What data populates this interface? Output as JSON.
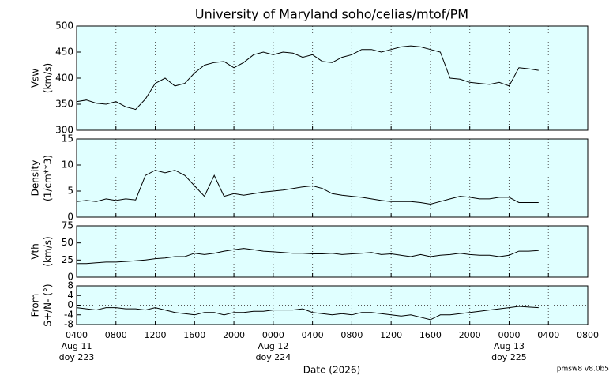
{
  "title": "University of Maryland  soho/celias/mtof/PM",
  "xlabel": "Date (2026)",
  "footer": "pmsw8 v8.0b5",
  "xlim": [
    4,
    56
  ],
  "xticks": [
    {
      "value": 4,
      "label": "0400"
    },
    {
      "value": 8,
      "label": "0800"
    },
    {
      "value": 12,
      "label": "1200"
    },
    {
      "value": 16,
      "label": "1600"
    },
    {
      "value": 20,
      "label": "2000"
    },
    {
      "value": 24,
      "label": "0000"
    },
    {
      "value": 28,
      "label": "0400"
    },
    {
      "value": 32,
      "label": "0800"
    },
    {
      "value": 36,
      "label": "1200"
    },
    {
      "value": 40,
      "label": "1600"
    },
    {
      "value": 44,
      "label": "2000"
    },
    {
      "value": 48,
      "label": "0000"
    },
    {
      "value": 52,
      "label": "0400"
    },
    {
      "value": 56,
      "label": "0800"
    }
  ],
  "date_labels": [
    {
      "value": 4,
      "lines": [
        "Aug 11",
        "doy 223"
      ]
    },
    {
      "value": 24,
      "lines": [
        "Aug 12",
        "doy 224"
      ]
    },
    {
      "value": 48,
      "lines": [
        "Aug 13",
        "doy 225"
      ]
    }
  ],
  "chart_data": [
    {
      "type": "line",
      "ylabel": [
        "Vsw",
        "(km/s)"
      ],
      "color": "#000000",
      "ylim": [
        300,
        500
      ],
      "yticks": [
        300,
        350,
        400,
        450,
        500
      ],
      "x": [
        4,
        5,
        6,
        7,
        8,
        9,
        10,
        11,
        12,
        13,
        14,
        15,
        16,
        17,
        18,
        19,
        20,
        21,
        22,
        23,
        24,
        25,
        26,
        27,
        28,
        29,
        30,
        31,
        32,
        33,
        34,
        35,
        36,
        37,
        38,
        39,
        40,
        41,
        42,
        43,
        44,
        45,
        46,
        47,
        48,
        49,
        50,
        51
      ],
      "values": [
        355,
        358,
        352,
        350,
        355,
        345,
        340,
        360,
        390,
        400,
        385,
        390,
        410,
        425,
        430,
        432,
        420,
        430,
        445,
        450,
        445,
        450,
        448,
        440,
        445,
        432,
        430,
        440,
        445,
        455,
        455,
        450,
        455,
        460,
        462,
        460,
        455,
        450,
        400,
        398,
        392,
        390,
        388,
        392,
        385,
        420,
        418,
        415
      ]
    },
    {
      "type": "line",
      "ylabel": [
        "Density",
        "(1/cm**3)"
      ],
      "color": "#000000",
      "ylim": [
        0,
        15
      ],
      "yticks": [
        0,
        5,
        10,
        15
      ],
      "x": [
        4,
        5,
        6,
        7,
        8,
        9,
        10,
        11,
        12,
        13,
        14,
        15,
        16,
        17,
        18,
        19,
        20,
        21,
        22,
        23,
        24,
        25,
        26,
        27,
        28,
        29,
        30,
        31,
        32,
        33,
        34,
        35,
        36,
        37,
        38,
        39,
        40,
        41,
        42,
        43,
        44,
        45,
        46,
        47,
        48,
        49,
        50,
        51
      ],
      "values": [
        3,
        3.2,
        3,
        3.5,
        3.2,
        3.5,
        3.3,
        8,
        9,
        8.5,
        9,
        8,
        6,
        4,
        8,
        4,
        4.5,
        4.2,
        4.5,
        4.8,
        5,
        5.2,
        5.5,
        5.8,
        6,
        5.5,
        4.5,
        4.2,
        4,
        3.8,
        3.5,
        3.2,
        3,
        3,
        3,
        2.8,
        2.5,
        3,
        3.5,
        4,
        3.8,
        3.5,
        3.5,
        3.8,
        3.8,
        2.8,
        2.8,
        2.8
      ]
    },
    {
      "type": "line",
      "ylabel": [
        "Vth",
        "(km/s)"
      ],
      "color": "#000000",
      "ylim": [
        0,
        75
      ],
      "yticks": [
        0,
        25,
        50,
        75
      ],
      "x": [
        4,
        5,
        6,
        7,
        8,
        9,
        10,
        11,
        12,
        13,
        14,
        15,
        16,
        17,
        18,
        19,
        20,
        21,
        22,
        23,
        24,
        25,
        26,
        27,
        28,
        29,
        30,
        31,
        32,
        33,
        34,
        35,
        36,
        37,
        38,
        39,
        40,
        41,
        42,
        43,
        44,
        45,
        46,
        47,
        48,
        49,
        50,
        51
      ],
      "values": [
        20,
        20,
        21,
        22,
        22,
        23,
        24,
        25,
        27,
        28,
        30,
        30,
        35,
        33,
        35,
        38,
        40,
        42,
        40,
        38,
        37,
        36,
        35,
        35,
        34,
        34,
        35,
        33,
        34,
        35,
        36,
        33,
        34,
        32,
        30,
        33,
        30,
        32,
        33,
        35,
        33,
        32,
        32,
        30,
        32,
        38,
        38,
        39
      ]
    },
    {
      "type": "line",
      "ylabel": [
        "From",
        "S+/N- (°)"
      ],
      "color": "#000000",
      "ylim": [
        -8,
        8
      ],
      "yticks": [
        -8,
        -4,
        0,
        4,
        8
      ],
      "hlines": [
        0
      ],
      "x": [
        4,
        5,
        6,
        7,
        8,
        9,
        10,
        11,
        12,
        13,
        14,
        15,
        16,
        17,
        18,
        19,
        20,
        21,
        22,
        23,
        24,
        25,
        26,
        27,
        28,
        29,
        30,
        31,
        32,
        33,
        34,
        35,
        36,
        37,
        38,
        39,
        40,
        41,
        42,
        43,
        44,
        45,
        46,
        47,
        48,
        49,
        50,
        51
      ],
      "values": [
        -1,
        -1.5,
        -2,
        -1,
        -1,
        -1.5,
        -1.5,
        -2,
        -1,
        -2,
        -3,
        -3.5,
        -4,
        -3,
        -3,
        -4,
        -3,
        -3,
        -2.5,
        -2.5,
        -2,
        -2,
        -2,
        -1.5,
        -3,
        -3.5,
        -4,
        -3.5,
        -4,
        -3,
        -3,
        -3.5,
        -4,
        -4.5,
        -4,
        -5,
        -6,
        -4,
        -4,
        -3.5,
        -3,
        -2.5,
        -2,
        -1.5,
        -1,
        -0.5,
        -0.8,
        -1
      ]
    }
  ]
}
